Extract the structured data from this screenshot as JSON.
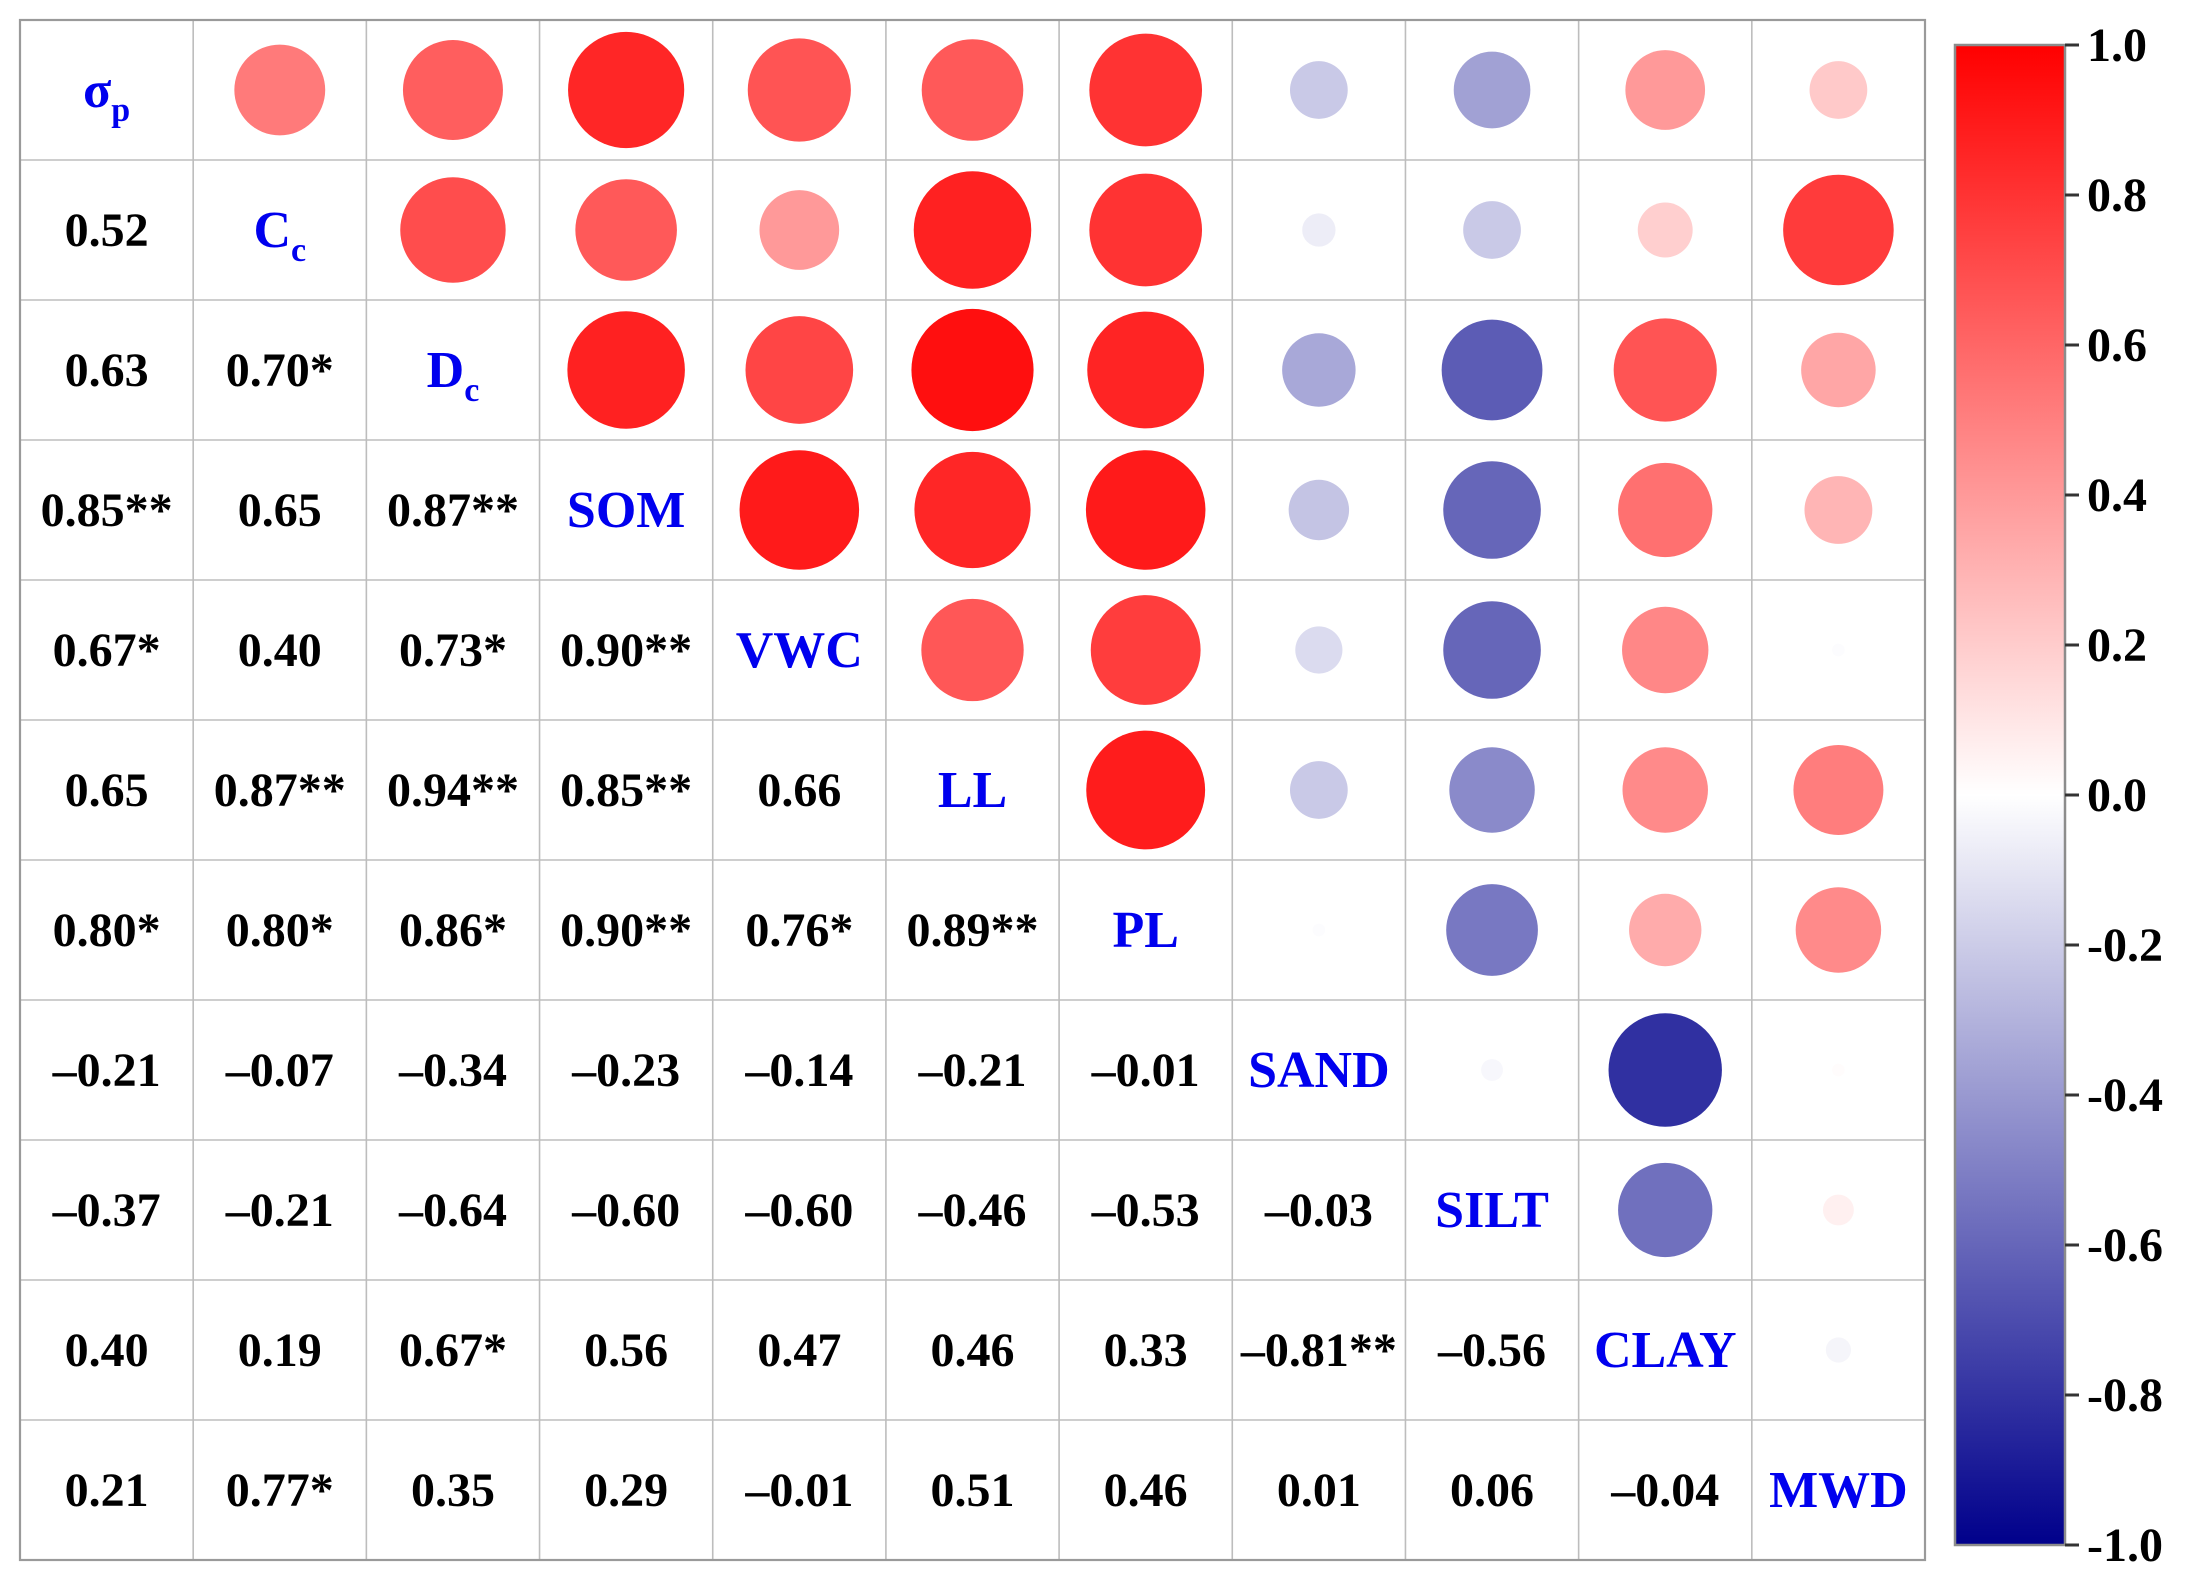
{
  "chart_data": {
    "type": "heatmap",
    "variables": [
      {
        "base": "σ",
        "sub": "p"
      },
      {
        "base": "C",
        "sub": "c"
      },
      {
        "base": "D",
        "sub": "c"
      },
      {
        "base": "SOM",
        "sub": ""
      },
      {
        "base": "VWC",
        "sub": ""
      },
      {
        "base": "LL",
        "sub": ""
      },
      {
        "base": "PL",
        "sub": ""
      },
      {
        "base": "SAND",
        "sub": ""
      },
      {
        "base": "SILT",
        "sub": ""
      },
      {
        "base": "CLAY",
        "sub": ""
      },
      {
        "base": "MWD",
        "sub": ""
      }
    ],
    "lower_labels": [
      [],
      [
        "0.52"
      ],
      [
        "0.63",
        "0.70*"
      ],
      [
        "0.85**",
        "0.65",
        "0.87**"
      ],
      [
        "0.67*",
        "0.40",
        "0.73*",
        "0.90**"
      ],
      [
        "0.65",
        "0.87**",
        "0.94**",
        "0.85**",
        "0.66"
      ],
      [
        "0.80*",
        "0.80*",
        "0.86*",
        "0.90**",
        "0.76*",
        "0.89**"
      ],
      [
        "–0.21",
        "–0.07",
        "–0.34",
        "–0.23",
        "–0.14",
        "–0.21",
        "–0.01"
      ],
      [
        "–0.37",
        "–0.21",
        "–0.64",
        "–0.60",
        "–0.60",
        "–0.46",
        "–0.53",
        "–0.03"
      ],
      [
        "0.40",
        "0.19",
        "0.67*",
        "0.56",
        "0.47",
        "0.46",
        "0.33",
        "–0.81**",
        "–0.56"
      ],
      [
        "0.21",
        "0.77*",
        "0.35",
        "0.29",
        "–0.01",
        "0.51",
        "0.46",
        "0.01",
        "0.06",
        "–0.04"
      ]
    ],
    "matrix": [
      [
        1.0,
        0.52,
        0.63,
        0.85,
        0.67,
        0.65,
        0.8,
        -0.21,
        -0.37,
        0.4,
        0.21
      ],
      [
        0.52,
        1.0,
        0.7,
        0.65,
        0.4,
        0.87,
        0.8,
        -0.07,
        -0.21,
        0.19,
        0.77
      ],
      [
        0.63,
        0.7,
        1.0,
        0.87,
        0.73,
        0.94,
        0.86,
        -0.34,
        -0.64,
        0.67,
        0.35
      ],
      [
        0.85,
        0.65,
        0.87,
        1.0,
        0.9,
        0.85,
        0.9,
        -0.23,
        -0.6,
        0.56,
        0.29
      ],
      [
        0.67,
        0.4,
        0.73,
        0.9,
        1.0,
        0.66,
        0.76,
        -0.14,
        -0.6,
        0.47,
        -0.01
      ],
      [
        0.65,
        0.87,
        0.94,
        0.85,
        0.66,
        1.0,
        0.89,
        -0.21,
        -0.46,
        0.46,
        0.51
      ],
      [
        0.8,
        0.8,
        0.86,
        0.9,
        0.76,
        0.89,
        1.0,
        -0.01,
        -0.53,
        0.33,
        0.46
      ],
      [
        -0.21,
        -0.07,
        -0.34,
        -0.23,
        -0.14,
        -0.21,
        -0.01,
        1.0,
        -0.03,
        -0.81,
        0.01
      ],
      [
        -0.37,
        -0.21,
        -0.64,
        -0.6,
        -0.6,
        -0.46,
        -0.53,
        -0.03,
        1.0,
        -0.56,
        0.06
      ],
      [
        0.4,
        0.19,
        0.67,
        0.56,
        0.47,
        0.46,
        0.33,
        -0.81,
        -0.56,
        1.0,
        -0.04
      ],
      [
        0.21,
        0.77,
        0.35,
        0.29,
        -0.01,
        0.51,
        0.46,
        0.01,
        0.06,
        -0.04,
        1.0
      ]
    ],
    "upper_encoding": "circle size and color proportional to correlation",
    "colorbar": {
      "range": [
        -1.0,
        1.0
      ],
      "ticks": [
        "1.0",
        "0.8",
        "0.6",
        "0.4",
        "0.2",
        "0.0",
        "-0.2",
        "-0.4",
        "-0.6",
        "-0.8",
        "-1.0"
      ],
      "tick_values": [
        1.0,
        0.8,
        0.6,
        0.4,
        0.2,
        0.0,
        -0.2,
        -0.4,
        -0.6,
        -0.8,
        -1.0
      ],
      "color_min": "#00008b",
      "color_mid": "#ffffff",
      "color_max": "#ff0000"
    },
    "colors": {
      "diagonal_text": "#0000ee",
      "coefficient_text": "#000000",
      "grid": "#bdbdbd"
    }
  }
}
